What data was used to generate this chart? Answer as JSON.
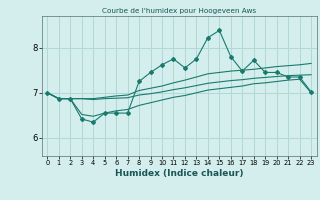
{
  "title": "Courbe de l'humidex pour Hoogeveen Aws",
  "xlabel": "Humidex (Indice chaleur)",
  "bg_color": "#d4eeed",
  "grid_color": "#b0d8d4",
  "line_color": "#1a7a6e",
  "x_ticks": [
    0,
    1,
    2,
    3,
    4,
    5,
    6,
    7,
    8,
    9,
    10,
    11,
    12,
    13,
    14,
    15,
    16,
    17,
    18,
    19,
    20,
    21,
    22,
    23
  ],
  "y_ticks": [
    6,
    7,
    8
  ],
  "ylim": [
    5.6,
    8.7
  ],
  "xlim": [
    -0.5,
    23.5
  ],
  "main_line": [
    7.0,
    6.87,
    6.87,
    6.42,
    6.35,
    6.55,
    6.55,
    6.55,
    7.25,
    7.45,
    7.62,
    7.75,
    7.55,
    7.75,
    8.22,
    8.38,
    7.8,
    7.48,
    7.72,
    7.45,
    7.45,
    7.35,
    7.35,
    7.02
  ],
  "upper_line": [
    7.0,
    6.87,
    6.87,
    6.87,
    6.87,
    6.9,
    6.93,
    6.95,
    7.05,
    7.1,
    7.15,
    7.22,
    7.28,
    7.35,
    7.42,
    7.45,
    7.48,
    7.5,
    7.52,
    7.55,
    7.58,
    7.6,
    7.62,
    7.65
  ],
  "mid_line": [
    7.0,
    6.87,
    6.87,
    6.87,
    6.85,
    6.87,
    6.88,
    6.89,
    6.95,
    6.98,
    7.02,
    7.07,
    7.11,
    7.16,
    7.21,
    7.24,
    7.27,
    7.29,
    7.32,
    7.34,
    7.36,
    7.38,
    7.39,
    7.4
  ],
  "lower_line": [
    7.0,
    6.87,
    6.87,
    6.52,
    6.48,
    6.55,
    6.6,
    6.63,
    6.72,
    6.78,
    6.84,
    6.9,
    6.94,
    7.0,
    7.06,
    7.09,
    7.12,
    7.15,
    7.2,
    7.22,
    7.25,
    7.28,
    7.3,
    7.0
  ]
}
